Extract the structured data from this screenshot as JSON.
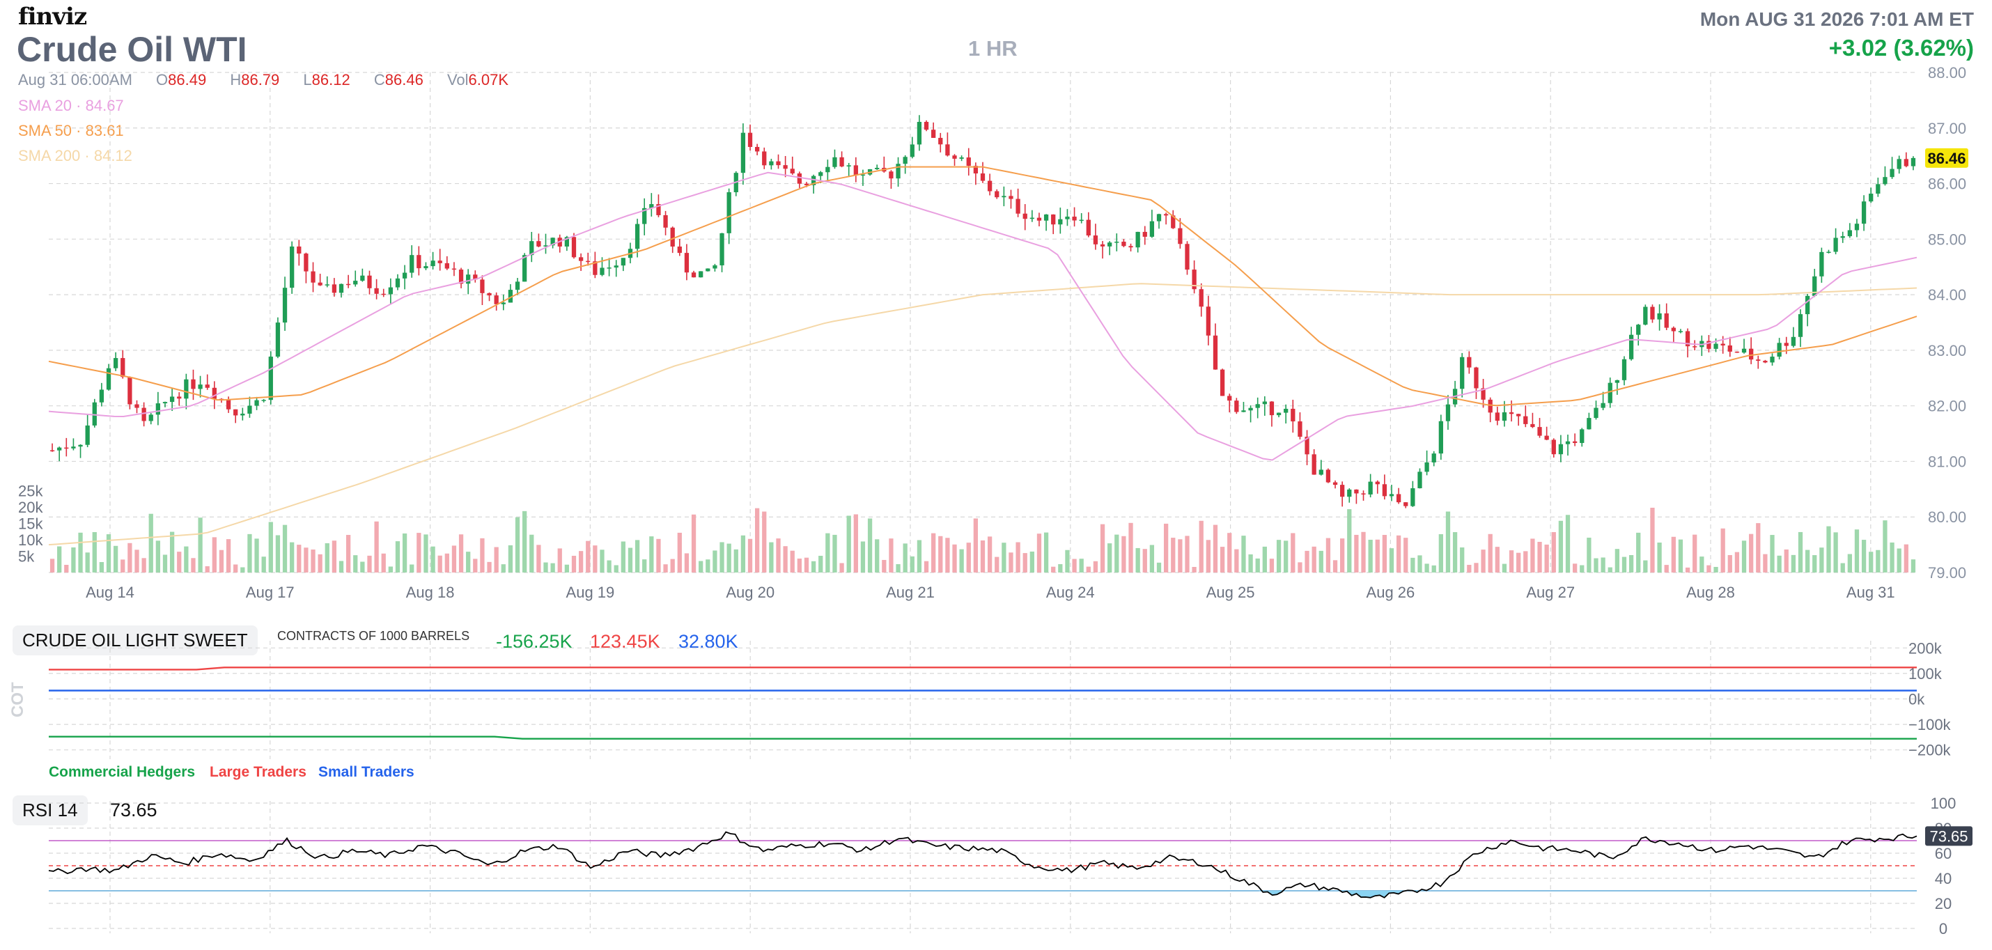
{
  "header": {
    "logo": "finviz",
    "title": "Crude Oil WTI",
    "timeframe": "1 HR",
    "datetime": "Mon AUG 31 2026 7:01 AM ET",
    "change": "+3.02 (3.62%)"
  },
  "ohlc": {
    "time": "Aug 31 06:00AM",
    "open_label": "O",
    "open": "86.49",
    "high_label": "H",
    "high": "86.79",
    "low_label": "L",
    "low": "86.12",
    "close_label": "C",
    "close": "86.46",
    "vol_label": "Vol",
    "vol": "6.07K"
  },
  "sma": [
    {
      "label": "SMA 20",
      "value": "84.67",
      "color": "#e9a0e0"
    },
    {
      "label": "SMA 50",
      "value": "83.61",
      "color": "#f59e4c"
    },
    {
      "label": "SMA 200",
      "value": "84.12",
      "color": "#f5d8a8"
    }
  ],
  "colors": {
    "up": "#1f9d55",
    "down": "#dc2f3e",
    "vol_up": "#9ed7ac",
    "vol_down": "#f2a9b0",
    "grid": "#d7d7d7",
    "price_tag_bg": "#f5e50b",
    "hedgers": "#16a34a",
    "large": "#ef4444",
    "small": "#2563eb",
    "rsi_line": "#000000",
    "rsi_upper": "#c05ac9",
    "rsi_mid": "#ef4444",
    "rsi_lower": "#5ea8d8",
    "rsi_fill": "#8ad3f2"
  },
  "cot": {
    "title": "CRUDE OIL LIGHT SWEET",
    "subtitle": "CONTRACTS OF 1000 BARRELS",
    "hedgers_value": "-156.25K",
    "large_value": "123.45K",
    "small_value": "32.80K",
    "side_label": "COT",
    "legend": [
      "Commercial Hedgers",
      "Large Traders",
      "Small Traders"
    ],
    "y_ticks": [
      "200k",
      "100k",
      "0k",
      "−100k",
      "−200k"
    ]
  },
  "rsi": {
    "label": "RSI 14",
    "value": "73.65",
    "y_ticks": [
      "100",
      "80",
      "60",
      "40",
      "20",
      "0"
    ]
  },
  "chart_data": [
    {
      "type": "candlestick",
      "x_labels": [
        "Aug 14",
        "Aug 17",
        "Aug 18",
        "Aug 19",
        "Aug 20",
        "Aug 21",
        "Aug 24",
        "Aug 25",
        "Aug 26",
        "Aug 27",
        "Aug 28",
        "Aug 31"
      ],
      "y_ticks": [
        "88.00",
        "87.00",
        "86.00",
        "85.00",
        "84.00",
        "83.00",
        "82.00",
        "81.00",
        "80.00",
        "79.00"
      ],
      "ylim": [
        79,
        88
      ],
      "last_price": "86.46",
      "volume_ticks": [
        "25k",
        "20k",
        "15k",
        "10k",
        "5k"
      ],
      "close_anchors": [
        81.2,
        81.4,
        82.9,
        81.6,
        82.2,
        82.5,
        81.9,
        82.1,
        84.8,
        84.0,
        84.3,
        84.1,
        84.6,
        84.5,
        84.2,
        83.8,
        84.9,
        85.0,
        84.4,
        84.7,
        85.7,
        84.5,
        84.3,
        86.9,
        86.3,
        86.0,
        86.5,
        86.1,
        86.2,
        87.1,
        86.5,
        86.0,
        85.6,
        85.3,
        85.5,
        84.8,
        84.9,
        85.5,
        84.3,
        82.1,
        81.9,
        82.0,
        80.9,
        80.3,
        80.6,
        80.1,
        81.2,
        82.8,
        81.9,
        81.7,
        81.2,
        81.5,
        82.4,
        83.8,
        83.3,
        83.1,
        83.0,
        82.8,
        83.3,
        84.8,
        85.2,
        86.2,
        86.46
      ],
      "sma20_anchors": [
        81.9,
        81.8,
        82.0,
        82.6,
        83.3,
        84.0,
        84.3,
        84.9,
        85.4,
        85.8,
        86.2,
        86.0,
        85.6,
        85.2,
        84.8,
        82.8,
        81.5,
        81.0,
        81.8,
        82.0,
        82.3,
        82.8,
        83.2,
        83.1,
        83.4,
        84.4,
        84.67
      ],
      "sma50_anchors": [
        82.8,
        82.5,
        82.1,
        82.2,
        82.8,
        83.6,
        84.4,
        84.8,
        85.4,
        86.0,
        86.3,
        86.3,
        86.0,
        85.7,
        84.5,
        83.1,
        82.3,
        82.0,
        82.1,
        82.5,
        82.9,
        83.1,
        83.61
      ],
      "sma200_anchors": [
        79.5,
        79.7,
        80.6,
        81.6,
        82.7,
        83.5,
        84.0,
        84.2,
        84.1,
        84.0,
        84.0,
        84.0,
        84.12
      ]
    },
    {
      "type": "line",
      "title": "CRUDE OIL LIGHT SWEET",
      "ylim": [
        -250,
        250
      ],
      "series": [
        {
          "name": "Large Traders",
          "start": 115,
          "end": 123.45
        },
        {
          "name": "Small Traders",
          "start": 32.8,
          "end": 32.8
        },
        {
          "name": "Commercial Hedgers",
          "start": -148,
          "end": -156.25
        }
      ]
    },
    {
      "type": "line",
      "title": "RSI 14",
      "ylim": [
        0,
        100
      ],
      "levels": [
        70,
        50,
        30
      ],
      "rsi_anchors": [
        44,
        48,
        46,
        58,
        52,
        60,
        54,
        70,
        56,
        62,
        58,
        66,
        60,
        50,
        62,
        66,
        48,
        62,
        58,
        64,
        76,
        62,
        66,
        68,
        62,
        72,
        66,
        64,
        62,
        50,
        46,
        52,
        48,
        56,
        52,
        40,
        28,
        35,
        30,
        24,
        28,
        36,
        60,
        70,
        64,
        62,
        56,
        72,
        68,
        62,
        66,
        62,
        56,
        70,
        72,
        73.65
      ]
    }
  ]
}
